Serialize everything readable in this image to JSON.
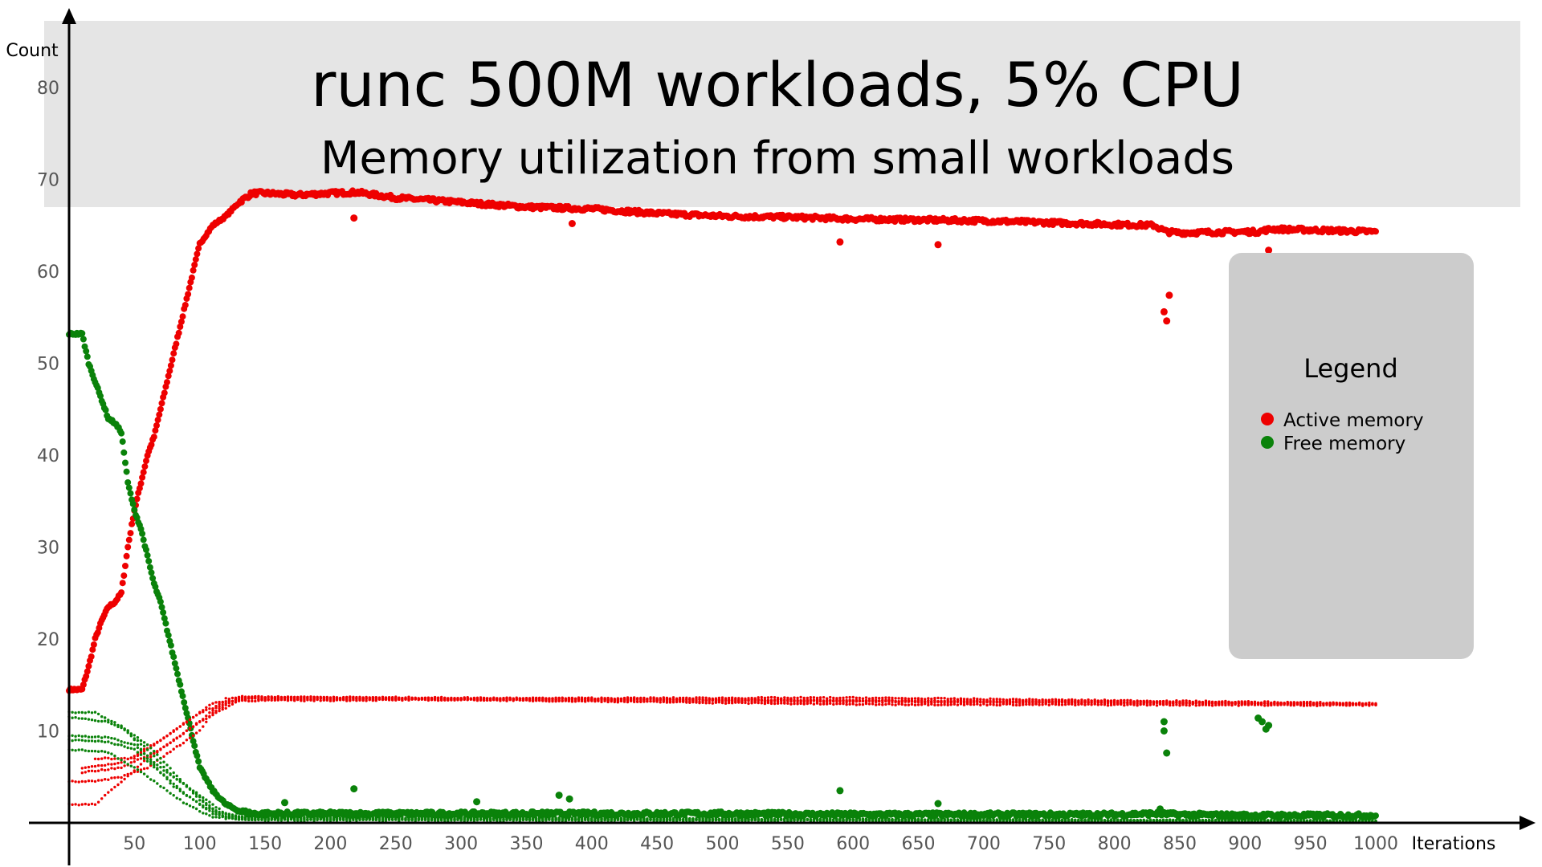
{
  "chart_data": {
    "type": "scatter",
    "title": "runc 500M workloads, 5% CPU",
    "subtitle": "Memory utilization from small workloads",
    "xlabel": "Iterations",
    "ylabel": "Count",
    "xlim": [
      0,
      1050
    ],
    "ylim": [
      0,
      87
    ],
    "x_ticks": [
      50,
      100,
      150,
      200,
      250,
      300,
      350,
      400,
      450,
      500,
      550,
      600,
      650,
      700,
      750,
      800,
      850,
      900,
      950,
      1000
    ],
    "y_ticks": [
      10,
      20,
      30,
      40,
      50,
      60,
      70,
      80
    ],
    "grid": false,
    "legend": {
      "title": "Legend",
      "position": "right",
      "entries": [
        {
          "label": "Active memory",
          "color": "#ee0000"
        },
        {
          "label": "Free memory",
          "color": "#0a820a"
        }
      ]
    },
    "series": [
      {
        "name": "Active memory",
        "color": "#ee0000",
        "role": "aggregate",
        "points": [
          [
            0,
            14.5
          ],
          [
            10,
            14.5
          ],
          [
            15,
            17
          ],
          [
            20,
            20
          ],
          [
            25,
            22
          ],
          [
            30,
            23.5
          ],
          [
            35,
            24
          ],
          [
            40,
            25
          ],
          [
            45,
            30
          ],
          [
            50,
            34
          ],
          [
            55,
            37
          ],
          [
            60,
            40
          ],
          [
            65,
            42
          ],
          [
            70,
            45
          ],
          [
            75,
            48
          ],
          [
            80,
            51
          ],
          [
            85,
            54
          ],
          [
            90,
            57
          ],
          [
            95,
            60
          ],
          [
            100,
            63
          ],
          [
            110,
            65
          ],
          [
            120,
            66
          ],
          [
            130,
            67.5
          ],
          [
            140,
            68.5
          ],
          [
            150,
            68.5
          ],
          [
            175,
            68.3
          ],
          [
            200,
            68.5
          ],
          [
            220,
            68.6
          ],
          [
            250,
            68
          ],
          [
            300,
            67.5
          ],
          [
            350,
            67
          ],
          [
            400,
            66.8
          ],
          [
            450,
            66.3
          ],
          [
            500,
            66
          ],
          [
            550,
            65.9
          ],
          [
            600,
            65.7
          ],
          [
            650,
            65.6
          ],
          [
            700,
            65.5
          ],
          [
            750,
            65.3
          ],
          [
            800,
            65.1
          ],
          [
            830,
            65
          ],
          [
            840,
            64.3
          ],
          [
            850,
            64.2
          ],
          [
            900,
            64.3
          ],
          [
            910,
            64.3
          ],
          [
            920,
            64.6
          ],
          [
            950,
            64.5
          ],
          [
            1000,
            64.3
          ]
        ],
        "outliers": [
          [
            218,
            65.8
          ],
          [
            385,
            65.2
          ],
          [
            590,
            63.2
          ],
          [
            665,
            62.9
          ],
          [
            838,
            55.6
          ],
          [
            840,
            54.6
          ],
          [
            842,
            57.4
          ],
          [
            910,
            53.6
          ],
          [
            913,
            54.6
          ],
          [
            918,
            62.3
          ]
        ]
      },
      {
        "name": "Free memory",
        "color": "#0a820a",
        "role": "aggregate",
        "points": [
          [
            0,
            53.2
          ],
          [
            10,
            53.2
          ],
          [
            15,
            50
          ],
          [
            20,
            48
          ],
          [
            25,
            46
          ],
          [
            30,
            44
          ],
          [
            35,
            43.5
          ],
          [
            40,
            42.5
          ],
          [
            45,
            37
          ],
          [
            50,
            34
          ],
          [
            55,
            32
          ],
          [
            60,
            29
          ],
          [
            65,
            26
          ],
          [
            70,
            24
          ],
          [
            75,
            21
          ],
          [
            80,
            18
          ],
          [
            85,
            15
          ],
          [
            90,
            12
          ],
          [
            95,
            9
          ],
          [
            100,
            6
          ],
          [
            110,
            3.5
          ],
          [
            120,
            2
          ],
          [
            130,
            1.3
          ],
          [
            140,
            1
          ],
          [
            200,
            1
          ],
          [
            300,
            1
          ],
          [
            400,
            1
          ],
          [
            500,
            1
          ],
          [
            600,
            0.9
          ],
          [
            700,
            0.9
          ],
          [
            800,
            0.9
          ],
          [
            830,
            1
          ],
          [
            850,
            0.9
          ],
          [
            900,
            0.8
          ],
          [
            950,
            0.8
          ],
          [
            1000,
            0.8
          ]
        ],
        "outliers": [
          [
            165,
            2.2
          ],
          [
            218,
            3.7
          ],
          [
            312,
            2.3
          ],
          [
            375,
            3
          ],
          [
            383,
            2.6
          ],
          [
            590,
            3.5
          ],
          [
            665,
            2.1
          ],
          [
            835,
            1.5
          ],
          [
            838,
            11
          ],
          [
            838,
            10
          ],
          [
            840,
            7.6
          ],
          [
            910,
            11.4
          ],
          [
            913,
            11
          ],
          [
            916,
            10.2
          ],
          [
            918,
            10.6
          ]
        ]
      },
      {
        "name": "Active memory",
        "color": "#ee0000",
        "role": "per-workload",
        "lines": [
          [
            [
              0,
              2
            ],
            [
              20,
              2
            ],
            [
              40,
              4.5
            ],
            [
              60,
              7
            ],
            [
              80,
              9
            ],
            [
              100,
              11
            ],
            [
              120,
              13.5
            ],
            [
              140,
              13.7
            ],
            [
              300,
              13.5
            ],
            [
              600,
              13.3
            ],
            [
              800,
              13.2
            ],
            [
              1000,
              12.9
            ]
          ],
          [
            [
              0,
              4.5
            ],
            [
              20,
              4.5
            ],
            [
              40,
              5
            ],
            [
              60,
              6
            ],
            [
              80,
              8
            ],
            [
              100,
              10
            ],
            [
              110,
              12
            ],
            [
              130,
              13.7
            ],
            [
              300,
              13.6
            ],
            [
              1000,
              12.9
            ]
          ],
          [
            [
              10,
              5.5
            ],
            [
              40,
              6
            ],
            [
              70,
              8
            ],
            [
              100,
              11
            ],
            [
              130,
              13.3
            ],
            [
              300,
              13.4
            ],
            [
              600,
              12.9
            ],
            [
              1000,
              12.8
            ]
          ],
          [
            [
              10,
              6
            ],
            [
              40,
              6.5
            ],
            [
              70,
              9
            ],
            [
              100,
              12
            ],
            [
              130,
              13.5
            ],
            [
              600,
              13.6
            ],
            [
              1000,
              13
            ]
          ],
          [
            [
              20,
              7
            ],
            [
              50,
              7
            ],
            [
              80,
              10
            ],
            [
              110,
              13
            ],
            [
              140,
              13.5
            ],
            [
              1000,
              12.9
            ]
          ]
        ]
      },
      {
        "name": "Free memory",
        "color": "#0a820a",
        "role": "per-workload",
        "lines": [
          [
            [
              0,
              12
            ],
            [
              20,
              12
            ],
            [
              40,
              10.5
            ],
            [
              60,
              8
            ],
            [
              80,
              5
            ],
            [
              100,
              3
            ],
            [
              120,
              1
            ],
            [
              140,
              0.4
            ],
            [
              1000,
              0.2
            ]
          ],
          [
            [
              0,
              11.5
            ],
            [
              30,
              11
            ],
            [
              45,
              10
            ],
            [
              60,
              7
            ],
            [
              80,
              4
            ],
            [
              100,
              2
            ],
            [
              120,
              0.6
            ],
            [
              1000,
              0.2
            ]
          ],
          [
            [
              0,
              9.5
            ],
            [
              30,
              9.3
            ],
            [
              50,
              8.5
            ],
            [
              70,
              6
            ],
            [
              90,
              4
            ],
            [
              110,
              1.5
            ],
            [
              130,
              0.4
            ],
            [
              1000,
              0.2
            ]
          ],
          [
            [
              0,
              9
            ],
            [
              30,
              8.8
            ],
            [
              50,
              8
            ],
            [
              70,
              5.5
            ],
            [
              90,
              3
            ],
            [
              110,
              1
            ],
            [
              130,
              0.3
            ],
            [
              1000,
              0.2
            ]
          ],
          [
            [
              0,
              8
            ],
            [
              30,
              7.7
            ],
            [
              50,
              6
            ],
            [
              70,
              4
            ],
            [
              90,
              2
            ],
            [
              110,
              0.6
            ],
            [
              1000,
              0.2
            ]
          ],
          [
            [
              40,
              10.5
            ],
            [
              60,
              8.5
            ],
            [
              80,
              5.5
            ],
            [
              100,
              2.5
            ],
            [
              120,
              0.5
            ],
            [
              1000,
              0.2
            ]
          ]
        ]
      }
    ]
  }
}
